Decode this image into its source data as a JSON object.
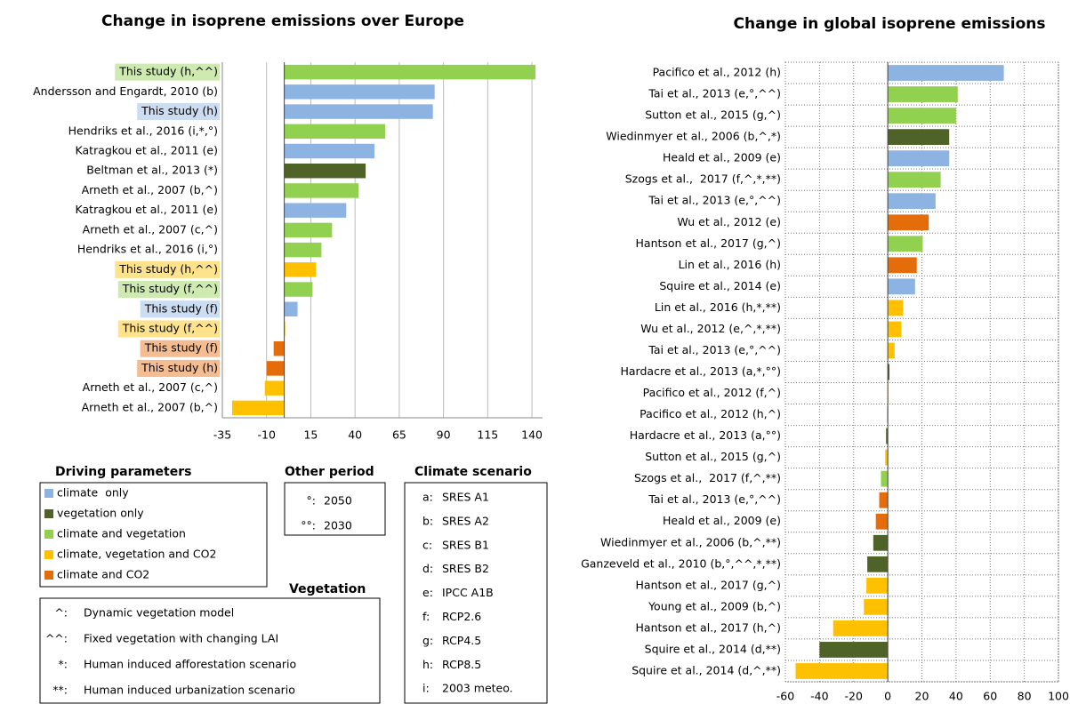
{
  "chart_data": [
    {
      "type": "bar",
      "orientation": "horizontal",
      "title": "Change in isoprene emissions over Europe",
      "categories": [
        "This study (h,^^)",
        "Andersson and Engardt, 2010 (b)",
        "This study (h)",
        "Hendriks et al., 2016 (i,*,°)",
        "Katragkou et al., 2011 (e)",
        "Beltman et al., 2013 (*)",
        "Arneth et al., 2007 (b,^)",
        "Katragkou et al., 2011 (e)",
        "Arneth et al., 2007 (c,^)",
        "Hendriks et al., 2016 (i,°)",
        "This study (h,^^)",
        "This study (f,^^)",
        "This study (f)",
        "This study (f,^^)",
        "This study (f)",
        "This study (h)",
        "Arneth et al., 2007 (c,^)",
        "Arneth et al., 2007 (b,^)"
      ],
      "values": [
        142,
        85,
        84,
        57,
        51,
        46,
        42,
        35,
        27,
        21,
        18,
        16,
        7.5,
        0.5,
        -6,
        -10,
        -11,
        -29.5
      ],
      "colors": [
        "#92d050",
        "#8db3e2",
        "#8db3e2",
        "#92d050",
        "#8db3e2",
        "#4f6228",
        "#92d050",
        "#8db3e2",
        "#92d050",
        "#92d050",
        "#ffc000",
        "#92d050",
        "#8db3e2",
        "#ffc000",
        "#e46c0a",
        "#e46c0a",
        "#ffc000",
        "#ffc000"
      ],
      "label_highlight": [
        true,
        false,
        true,
        false,
        false,
        false,
        false,
        false,
        false,
        false,
        true,
        true,
        true,
        true,
        true,
        true,
        false,
        false
      ],
      "xlim": [
        -35,
        146
      ],
      "xticks": [
        -35,
        -10,
        15,
        40,
        65,
        90,
        115,
        140
      ],
      "grid": "x",
      "grid_style": "solid"
    },
    {
      "type": "bar",
      "orientation": "horizontal",
      "title": "Change in global isoprene emissions",
      "categories": [
        "Pacifico et al., 2012 (h)",
        "Tai et al., 2013 (e,°,^^)",
        "Sutton et al., 2015 (g,^)",
        "Wiedinmyer et al., 2006 (b,^,*)",
        "Heald et al., 2009 (e)",
        "Szogs et al.,  2017 (f,^,*,**)",
        "Tai et al., 2013 (e,°,^^)",
        "Wu et al., 2012 (e)",
        "Hantson et al., 2017 (g,^)",
        "Lin et al., 2016 (h)",
        "Squire et al., 2014 (e)",
        "Lin et al., 2016 (h,*,**)",
        "Wu et al., 2012 (e,^,*,**)",
        "Tai et al., 2013 (e,°,^^)",
        "Hardacre et al., 2013 (a,*,°°)",
        "Pacifico et al., 2012 (f,^)",
        "Pacifico et al., 2012 (h,^)",
        "Hardacre et al., 2013 (a,°°)",
        "Sutton et al., 2015 (g,^)",
        "Szogs et al.,  2017 (f,^,**)",
        "Tai et al., 2013 (e,°,^^)",
        "Heald et al., 2009 (e)",
        "Wiedinmyer et al., 2006 (b,^,**)",
        "Ganzeveld et al., 2010 (b,°,^^,*,**)",
        "Hantson et al., 2017 (g,^)",
        "Young et al., 2009 (b,^)",
        "Hantson et al., 2017 (h,^)",
        "Squire et al., 2014 (d,**)",
        "Squire et al., 2014 (d,^,**)"
      ],
      "values": [
        68,
        41,
        40,
        36,
        36,
        31,
        28,
        24,
        20.5,
        17,
        16,
        9,
        8,
        4,
        1,
        0.3,
        -0.5,
        -1,
        -1.5,
        -4,
        -5,
        -7,
        -8.5,
        -12,
        -12.5,
        -14,
        -32,
        -40,
        -54
      ],
      "colors": [
        "#8db3e2",
        "#92d050",
        "#92d050",
        "#4f6228",
        "#8db3e2",
        "#92d050",
        "#8db3e2",
        "#e46c0a",
        "#92d050",
        "#e46c0a",
        "#8db3e2",
        "#ffc000",
        "#ffc000",
        "#ffc000",
        "#4f6228",
        "#ffc000",
        "#ffc000",
        "#4f6228",
        "#ffc000",
        "#92d050",
        "#e46c0a",
        "#e46c0a",
        "#4f6228",
        "#4f6228",
        "#ffc000",
        "#ffc000",
        "#ffc000",
        "#4f6228",
        "#ffc000"
      ],
      "xlim": [
        -60,
        100
      ],
      "xticks": [
        -60,
        -40,
        -20,
        0,
        20,
        40,
        60,
        80,
        100
      ],
      "grid": "both",
      "grid_style": "dotted"
    }
  ],
  "legend": {
    "title": "Driving parameters",
    "items": [
      {
        "name": "climate  only",
        "color": "#8db3e2"
      },
      {
        "name": "vegetation only",
        "color": "#4f6228"
      },
      {
        "name": "climate and vegetation",
        "color": "#92d050"
      },
      {
        "name": "climate, vegetation and CO2",
        "color": "#ffc000"
      },
      {
        "name": "climate and CO2",
        "color": "#e46c0a"
      }
    ]
  },
  "other_period": {
    "title": "Other period",
    "items": [
      {
        "symbol": "°:",
        "text": "2050"
      },
      {
        "symbol": "°°:",
        "text": "2030"
      }
    ]
  },
  "climate_scenario": {
    "title": "Climate scenario",
    "items": [
      {
        "symbol": "a:",
        "text": "SRES A1"
      },
      {
        "symbol": "b:",
        "text": "SRES A2"
      },
      {
        "symbol": "c:",
        "text": "SRES B1"
      },
      {
        "symbol": "d:",
        "text": "SRES B2"
      },
      {
        "symbol": "e:",
        "text": "IPCC A1B"
      },
      {
        "symbol": "f:",
        "text": "RCP2.6"
      },
      {
        "symbol": "g:",
        "text": "RCP4.5"
      },
      {
        "symbol": "h:",
        "text": "RCP8.5"
      },
      {
        "symbol": "i:",
        "text": "2003 meteo."
      }
    ]
  },
  "vegetation": {
    "title": "Vegetation",
    "items": [
      {
        "symbol": "^:",
        "text": "Dynamic vegetation model"
      },
      {
        "symbol": "^^:",
        "text": "Fixed vegetation with changing LAI"
      },
      {
        "symbol": "*:",
        "text": "Human induced afforestation scenario"
      },
      {
        "symbol": "**:",
        "text": "Human induced urbanization scenario"
      }
    ]
  }
}
